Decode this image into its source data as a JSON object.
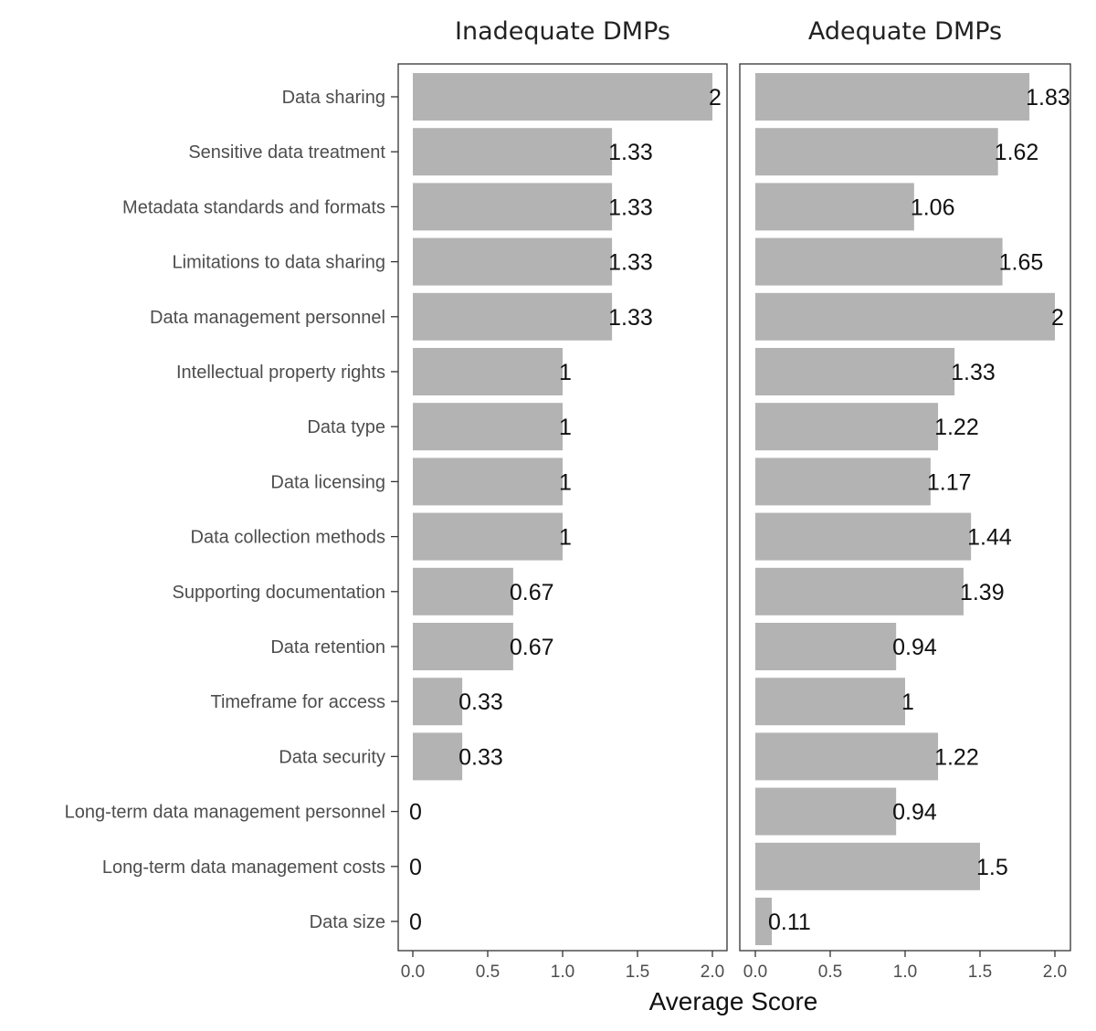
{
  "chart_data": {
    "type": "bar",
    "orientation": "horizontal",
    "categories": [
      "Data sharing",
      "Sensitive data treatment",
      "Metadata standards and formats",
      "Limitations to data sharing",
      "Data management personnel",
      "Intellectual property rights",
      "Data type",
      "Data licensing",
      "Data collection methods",
      "Supporting documentation",
      "Data retention",
      "Timeframe for access",
      "Data security",
      "Long-term data management personnel",
      "Long-term data management costs",
      "Data size"
    ],
    "facets": [
      {
        "title": "Inadequate DMPs",
        "values": [
          2,
          1.33,
          1.33,
          1.33,
          1.33,
          1,
          1,
          1,
          1,
          0.67,
          0.67,
          0.33,
          0.33,
          0,
          0,
          0
        ],
        "labels": [
          "2",
          "1.33",
          "1.33",
          "1.33",
          "1.33",
          "1",
          "1",
          "1",
          "1",
          "0.67",
          "0.67",
          "0.33",
          "0.33",
          "0",
          "0",
          "0"
        ]
      },
      {
        "title": "Adequate DMPs",
        "values": [
          1.83,
          1.62,
          1.06,
          1.65,
          2,
          1.33,
          1.22,
          1.17,
          1.44,
          1.39,
          0.94,
          1,
          1.22,
          0.94,
          1.5,
          0.11
        ],
        "labels": [
          "1.83",
          "1.62",
          "1.06",
          "1.65",
          "2",
          "1.33",
          "1.22",
          "1.17",
          "1.44",
          "1.39",
          "0.94",
          "1",
          "1.22",
          "0.94",
          "1.5",
          "0.11"
        ]
      }
    ],
    "xlabel": "Average Score",
    "ylabel": "",
    "xlim": [
      0,
      2
    ],
    "xticks": [
      "0.0",
      "0.5",
      "1.0",
      "1.5",
      "2.0"
    ],
    "grid": false,
    "bar_color": "#b3b3b3"
  }
}
